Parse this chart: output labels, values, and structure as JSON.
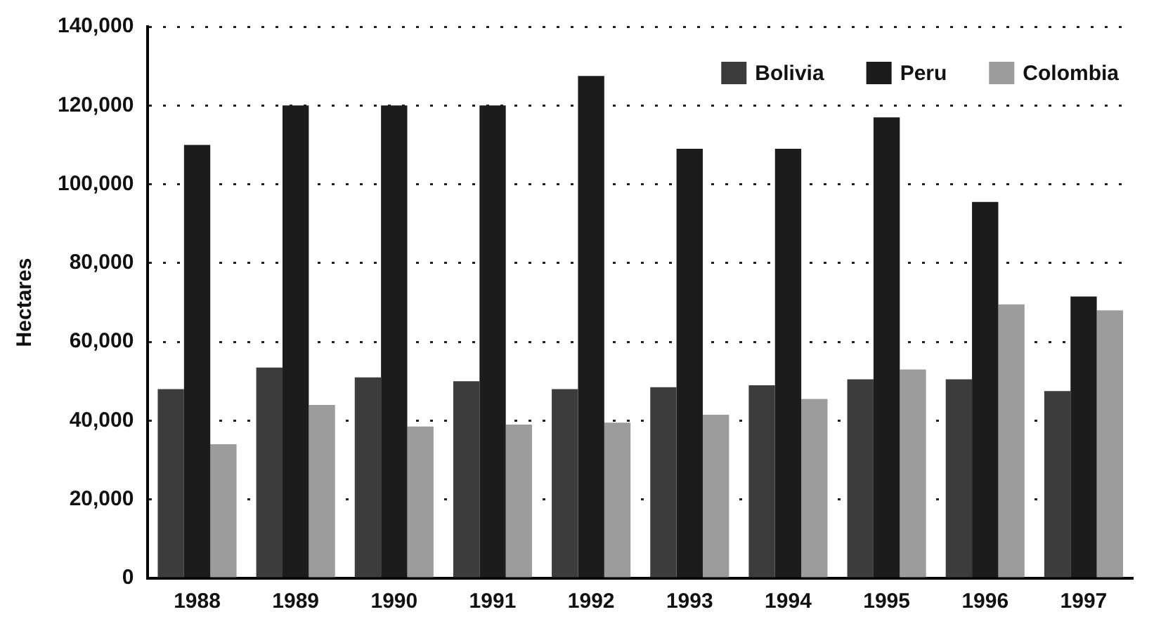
{
  "chart_data": {
    "type": "bar",
    "ylabel": "Hectares",
    "categories": [
      "1988",
      "1989",
      "1990",
      "1991",
      "1992",
      "1993",
      "1994",
      "1995",
      "1996",
      "1997"
    ],
    "series": [
      {
        "name": "Bolivia",
        "color": "#3c3c3c",
        "values": [
          48000,
          53500,
          51000,
          50000,
          48000,
          48500,
          49000,
          50500,
          50500,
          47500
        ]
      },
      {
        "name": "Peru",
        "color": "#1c1c1c",
        "values": [
          110000,
          120000,
          120000,
          120000,
          127500,
          109000,
          109000,
          117000,
          95500,
          71500
        ]
      },
      {
        "name": "Colombia",
        "color": "#9c9c9c",
        "values": [
          34000,
          44000,
          38500,
          39000,
          39500,
          41500,
          45500,
          53000,
          69500,
          68000
        ]
      }
    ],
    "ylim": [
      0,
      140000
    ],
    "yticks": [
      0,
      {
        "value": 20000,
        "label": "20,000"
      },
      {
        "value": 40000,
        "label": "40,000"
      },
      {
        "value": 60000,
        "label": "60,000"
      },
      {
        "value": 80000,
        "label": "80,000"
      },
      {
        "value": 100000,
        "label": "100,000"
      },
      {
        "value": 120000,
        "label": "120,000"
      },
      {
        "value": 140000,
        "label": "140,000"
      }
    ],
    "grid": "y",
    "legend": "top right"
  }
}
